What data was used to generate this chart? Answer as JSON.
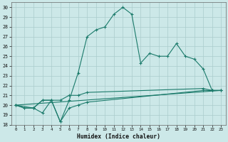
{
  "xlabel": "Humidex (Indice chaleur)",
  "ylabel": "",
  "bg_color": "#cce8e8",
  "grid_color": "#aacccc",
  "line_color": "#1a7a6a",
  "xlim": [
    -0.5,
    23.5
  ],
  "ylim": [
    18,
    30.5
  ],
  "xticks": [
    0,
    1,
    2,
    3,
    4,
    5,
    6,
    7,
    8,
    9,
    10,
    11,
    12,
    13,
    14,
    15,
    16,
    17,
    18,
    19,
    20,
    21,
    22,
    23
  ],
  "yticks": [
    18,
    19,
    20,
    21,
    22,
    23,
    24,
    25,
    26,
    27,
    28,
    29,
    30
  ],
  "series": [
    {
      "x": [
        0,
        2,
        3,
        4,
        5,
        6,
        7,
        8,
        9,
        10,
        11,
        12,
        13,
        14,
        15,
        16,
        17,
        18,
        19,
        20,
        21,
        22,
        23
      ],
      "y": [
        20,
        19.7,
        20.5,
        20.5,
        18.3,
        20.5,
        23.3,
        27.0,
        27.7,
        28.0,
        29.3,
        30.0,
        29.3,
        24.3,
        25.3,
        25.0,
        25.0,
        26.3,
        25.0,
        24.7,
        23.7,
        21.5,
        21.5
      ]
    },
    {
      "x": [
        0,
        1,
        2,
        3,
        4,
        5,
        6,
        7,
        8,
        21,
        22,
        23
      ],
      "y": [
        20,
        19.7,
        19.7,
        19.2,
        20.5,
        18.3,
        19.7,
        20.0,
        20.3,
        21.5,
        21.5,
        21.5
      ]
    },
    {
      "x": [
        0,
        1,
        2,
        3,
        4,
        5,
        6,
        7,
        8,
        21,
        22,
        23
      ],
      "y": [
        20,
        19.7,
        19.7,
        20.5,
        20.5,
        20.5,
        21.0,
        21.0,
        21.3,
        21.7,
        21.5,
        21.5
      ]
    },
    {
      "x": [
        0,
        23
      ],
      "y": [
        20,
        21.5
      ]
    }
  ]
}
